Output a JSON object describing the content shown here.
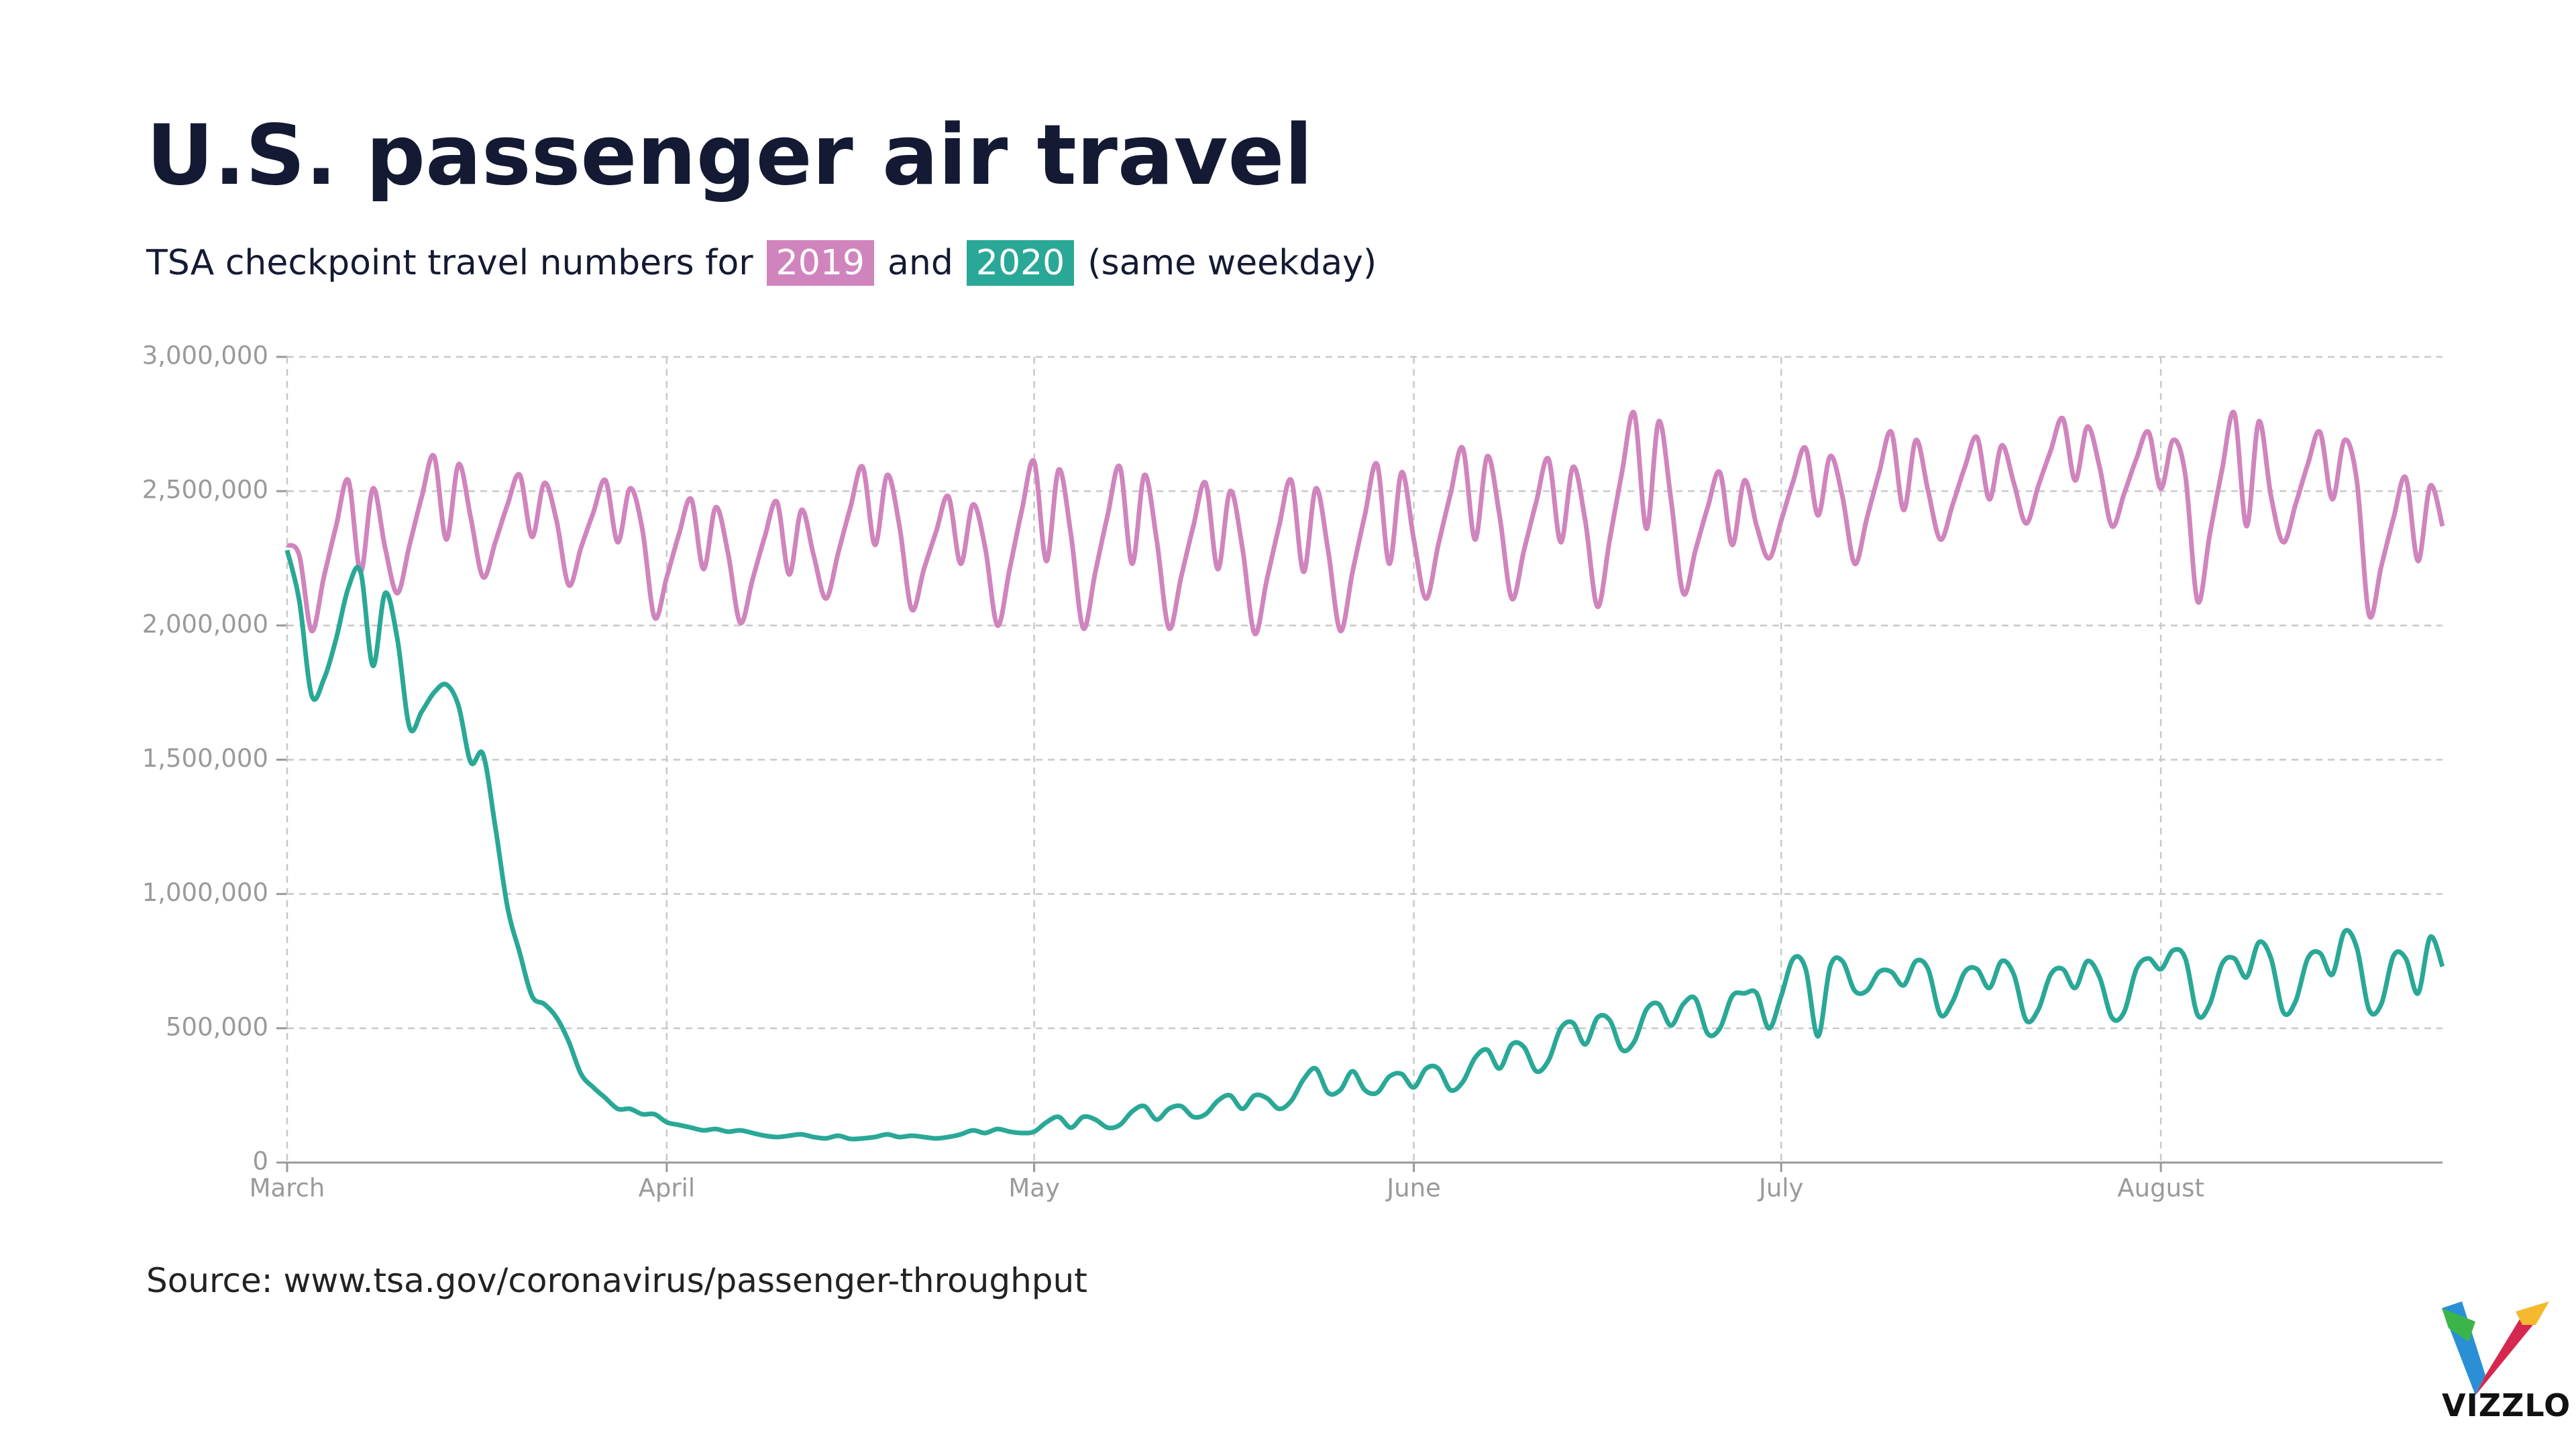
{
  "chart_data": {
    "type": "line",
    "title": "U.S. passenger air travel",
    "subtitle": [
      "TSA checkpoint travel numbers for",
      "and",
      "(same weekday)"
    ],
    "source": "Source: www.tsa.gov/coronavirus/passenger-throughput",
    "logo": "VIZZLO",
    "categories": [
      "March",
      null,
      null,
      null,
      null,
      null,
      null,
      null,
      null,
      null,
      null,
      null,
      null,
      null,
      null,
      null,
      null,
      null,
      null,
      null,
      null,
      null,
      null,
      null,
      null,
      null,
      null,
      null,
      null,
      null,
      null,
      "April",
      null,
      null,
      null,
      null,
      null,
      null,
      null,
      null,
      null,
      null,
      null,
      null,
      null,
      null,
      null,
      null,
      null,
      null,
      null,
      null,
      null,
      null,
      null,
      null,
      null,
      null,
      null,
      null,
      null,
      "May",
      null,
      null,
      null,
      null,
      null,
      null,
      null,
      null,
      null,
      null,
      null,
      null,
      null,
      null,
      null,
      null,
      null,
      null,
      null,
      null,
      null,
      null,
      null,
      null,
      null,
      null,
      null,
      null,
      null,
      null,
      "June",
      null,
      null,
      null,
      null,
      null,
      null,
      null,
      null,
      null,
      null,
      null,
      null,
      null,
      null,
      null,
      null,
      null,
      null,
      null,
      null,
      null,
      null,
      null,
      null,
      null,
      null,
      null,
      null,
      null,
      "July",
      null,
      null,
      null,
      null,
      null,
      null,
      null,
      null,
      null,
      null,
      null,
      null,
      null,
      null,
      null,
      null,
      null,
      null,
      null,
      null,
      null,
      null,
      null,
      null,
      null,
      null,
      null,
      null,
      null,
      null,
      "August",
      null,
      null,
      null,
      null,
      null,
      null,
      null,
      null,
      null,
      null,
      null,
      null,
      null,
      null,
      null,
      null,
      null,
      null,
      null,
      null,
      null,
      null,
      null
    ],
    "series": [
      {
        "name": "2019",
        "color": "#d084bd",
        "values": [
          2300000,
          2260000,
          1980000,
          2180000,
          2370000,
          2540000,
          2200000,
          2510000,
          2290000,
          2120000,
          2300000,
          2480000,
          2630000,
          2320000,
          2600000,
          2400000,
          2180000,
          2310000,
          2450000,
          2560000,
          2330000,
          2530000,
          2390000,
          2150000,
          2290000,
          2420000,
          2540000,
          2310000,
          2510000,
          2360000,
          2030000,
          2180000,
          2340000,
          2470000,
          2210000,
          2440000,
          2270000,
          2010000,
          2170000,
          2330000,
          2460000,
          2190000,
          2430000,
          2260000,
          2100000,
          2270000,
          2440000,
          2590000,
          2300000,
          2560000,
          2370000,
          2060000,
          2210000,
          2350000,
          2480000,
          2230000,
          2450000,
          2290000,
          2000000,
          2210000,
          2430000,
          2610000,
          2240000,
          2580000,
          2340000,
          1990000,
          2200000,
          2410000,
          2590000,
          2230000,
          2560000,
          2320000,
          1990000,
          2180000,
          2370000,
          2530000,
          2210000,
          2500000,
          2290000,
          1970000,
          2170000,
          2370000,
          2540000,
          2200000,
          2510000,
          2280000,
          1980000,
          2200000,
          2410000,
          2600000,
          2230000,
          2570000,
          2320000,
          2100000,
          2300000,
          2490000,
          2660000,
          2320000,
          2630000,
          2410000,
          2100000,
          2280000,
          2460000,
          2620000,
          2310000,
          2590000,
          2390000,
          2070000,
          2320000,
          2570000,
          2790000,
          2360000,
          2760000,
          2470000,
          2120000,
          2280000,
          2440000,
          2570000,
          2300000,
          2540000,
          2370000,
          2250000,
          2390000,
          2540000,
          2660000,
          2410000,
          2630000,
          2480000,
          2230000,
          2400000,
          2570000,
          2720000,
          2430000,
          2690000,
          2500000,
          2320000,
          2450000,
          2590000,
          2700000,
          2470000,
          2670000,
          2530000,
          2380000,
          2520000,
          2650000,
          2770000,
          2540000,
          2740000,
          2590000,
          2370000,
          2490000,
          2620000,
          2720000,
          2510000,
          2690000,
          2560000,
          2090000,
          2340000,
          2580000,
          2790000,
          2370000,
          2760000,
          2480000,
          2310000,
          2450000,
          2600000,
          2720000,
          2470000,
          2690000,
          2540000,
          2040000,
          2220000,
          2400000,
          2550000,
          2240000,
          2520000,
          2370000
        ]
      },
      {
        "name": "2020",
        "color": "#2aa897",
        "values": [
          2280000,
          2090000,
          1740000,
          1800000,
          1950000,
          2140000,
          2200000,
          1850000,
          2120000,
          1950000,
          1620000,
          1680000,
          1750000,
          1780000,
          1700000,
          1490000,
          1520000,
          1250000,
          950000,
          780000,
          620000,
          590000,
          540000,
          450000,
          330000,
          280000,
          240000,
          200000,
          200000,
          180000,
          180000,
          150000,
          140000,
          130000,
          120000,
          125000,
          115000,
          120000,
          110000,
          100000,
          95000,
          100000,
          105000,
          95000,
          90000,
          100000,
          88000,
          90000,
          95000,
          105000,
          95000,
          100000,
          95000,
          90000,
          95000,
          105000,
          120000,
          110000,
          125000,
          115000,
          110000,
          115000,
          150000,
          170000,
          130000,
          170000,
          160000,
          130000,
          140000,
          190000,
          210000,
          160000,
          200000,
          210000,
          170000,
          180000,
          230000,
          250000,
          200000,
          250000,
          240000,
          200000,
          230000,
          310000,
          350000,
          260000,
          270000,
          340000,
          270000,
          260000,
          320000,
          330000,
          280000,
          350000,
          350000,
          270000,
          300000,
          390000,
          420000,
          350000,
          440000,
          430000,
          340000,
          380000,
          500000,
          520000,
          440000,
          540000,
          530000,
          420000,
          450000,
          570000,
          590000,
          510000,
          590000,
          610000,
          480000,
          500000,
          620000,
          630000,
          630000,
          500000,
          620000,
          760000,
          720000,
          470000,
          730000,
          750000,
          640000,
          640000,
          710000,
          710000,
          660000,
          750000,
          720000,
          550000,
          600000,
          710000,
          720000,
          650000,
          750000,
          700000,
          530000,
          570000,
          700000,
          720000,
          650000,
          750000,
          690000,
          540000,
          560000,
          720000,
          760000,
          720000,
          790000,
          760000,
          550000,
          590000,
          740000,
          760000,
          690000,
          820000,
          760000,
          560000,
          600000,
          760000,
          780000,
          700000,
          860000,
          800000,
          570000,
          590000,
          770000,
          760000,
          630000,
          840000,
          730000
        ]
      }
    ],
    "ylim": [
      0,
      3000000
    ],
    "yticks": [
      0,
      {
        "value": 500000,
        "label": "500,000"
      },
      {
        "value": 1000000,
        "label": "1,000,000"
      },
      {
        "value": 1500000,
        "label": "1,500,000"
      },
      {
        "value": 2000000,
        "label": "2,000,000"
      },
      {
        "value": 2500000,
        "label": "2,500,000"
      },
      {
        "value": 3000000,
        "label": "3,000,000"
      }
    ],
    "grid": true
  }
}
